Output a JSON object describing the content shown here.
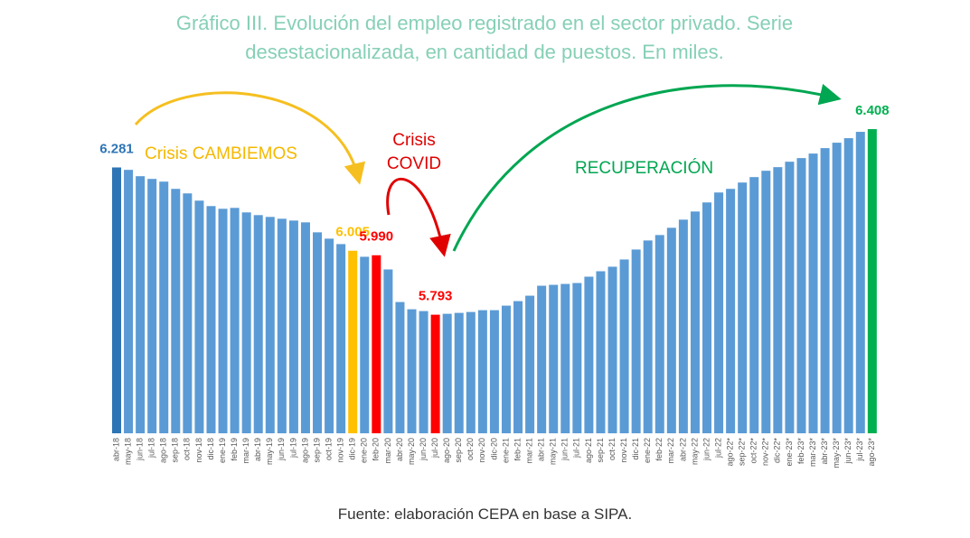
{
  "chart_data": {
    "type": "bar",
    "title": "Gráfico III. Evolución del empleo registrado en el sector privado. Serie desestacionalizada, en cantidad de puestos. En miles.",
    "categories": [
      "abr-18",
      "may-18",
      "jun-18",
      "jul-18",
      "ago-18",
      "sep-18",
      "oct-18",
      "nov-18",
      "dic-18",
      "ene-19",
      "feb-19",
      "mar-19",
      "abr-19",
      "may-19",
      "jun-19",
      "jul-19",
      "ago-19",
      "sep-19",
      "oct-19",
      "nov-19",
      "dic-19",
      "ene-20",
      "feb-20",
      "mar-20",
      "abr-20",
      "may-20",
      "jun-20",
      "jul-20",
      "ago-20",
      "sep-20",
      "oct-20",
      "nov-20",
      "dic-20",
      "ene-21",
      "feb-21",
      "mar-21",
      "abr-21",
      "may-21",
      "jun-21",
      "jul-21",
      "ago-21",
      "sep-21",
      "oct-21",
      "nov-21",
      "dic-21",
      "ene-22",
      "feb-22",
      "mar-22",
      "abr-22",
      "may-22",
      "jun-22",
      "jul-22",
      "ago-22*",
      "sep-22*",
      "oct-22*",
      "nov-22*",
      "dic-22*",
      "ene-23*",
      "feb-23*",
      "mar-23*",
      "abr-23*",
      "may-23*",
      "jun-23*",
      "jul-23*",
      "ago-23*"
    ],
    "values": [
      6281,
      6273,
      6252,
      6243,
      6234,
      6210,
      6195,
      6171,
      6153,
      6144,
      6147,
      6132,
      6123,
      6117,
      6111,
      6105,
      6099,
      6066,
      6045,
      6027,
      6005,
      5985,
      5990,
      5943,
      5835,
      5811,
      5805,
      5793,
      5796,
      5799,
      5802,
      5808,
      5808,
      5823,
      5838,
      5856,
      5889,
      5892,
      5895,
      5898,
      5919,
      5937,
      5952,
      5976,
      6009,
      6039,
      6057,
      6081,
      6108,
      6135,
      6165,
      6198,
      6210,
      6231,
      6249,
      6270,
      6282,
      6300,
      6312,
      6327,
      6345,
      6363,
      6378,
      6399,
      6408
    ],
    "value_labels": [
      "6.281",
      null,
      null,
      null,
      null,
      null,
      null,
      null,
      null,
      null,
      null,
      null,
      null,
      null,
      null,
      null,
      null,
      null,
      null,
      null,
      "6.005",
      null,
      "5.990",
      null,
      null,
      null,
      null,
      "5.793",
      null,
      null,
      null,
      null,
      null,
      null,
      null,
      null,
      null,
      null,
      null,
      null,
      null,
      null,
      null,
      null,
      null,
      null,
      null,
      null,
      null,
      null,
      null,
      null,
      null,
      null,
      null,
      null,
      null,
      null,
      null,
      null,
      null,
      null,
      null,
      null,
      "6.408"
    ],
    "colors": [
      "#2e75b6",
      "#5b9bd5",
      "#5b9bd5",
      "#5b9bd5",
      "#5b9bd5",
      "#5b9bd5",
      "#5b9bd5",
      "#5b9bd5",
      "#5b9bd5",
      "#5b9bd5",
      "#5b9bd5",
      "#5b9bd5",
      "#5b9bd5",
      "#5b9bd5",
      "#5b9bd5",
      "#5b9bd5",
      "#5b9bd5",
      "#5b9bd5",
      "#5b9bd5",
      "#5b9bd5",
      "#ffc000",
      "#5b9bd5",
      "#ff0000",
      "#5b9bd5",
      "#5b9bd5",
      "#5b9bd5",
      "#5b9bd5",
      "#ff0000",
      "#5b9bd5",
      "#5b9bd5",
      "#5b9bd5",
      "#5b9bd5",
      "#5b9bd5",
      "#5b9bd5",
      "#5b9bd5",
      "#5b9bd5",
      "#5b9bd5",
      "#5b9bd5",
      "#5b9bd5",
      "#5b9bd5",
      "#5b9bd5",
      "#5b9bd5",
      "#5b9bd5",
      "#5b9bd5",
      "#5b9bd5",
      "#5b9bd5",
      "#5b9bd5",
      "#5b9bd5",
      "#5b9bd5",
      "#5b9bd5",
      "#5b9bd5",
      "#5b9bd5",
      "#5b9bd5",
      "#5b9bd5",
      "#5b9bd5",
      "#5b9bd5",
      "#5b9bd5",
      "#5b9bd5",
      "#5b9bd5",
      "#5b9bd5",
      "#5b9bd5",
      "#5b9bd5",
      "#5b9bd5",
      "#5b9bd5",
      "#00b050"
    ],
    "ylim": [
      5400,
      6450
    ],
    "annotations": [
      "Crisis CAMBIEMOS",
      "Crisis COVID",
      "RECUPERACIÓN"
    ],
    "source": "Fuente: elaboración CEPA en base a SIPA."
  }
}
